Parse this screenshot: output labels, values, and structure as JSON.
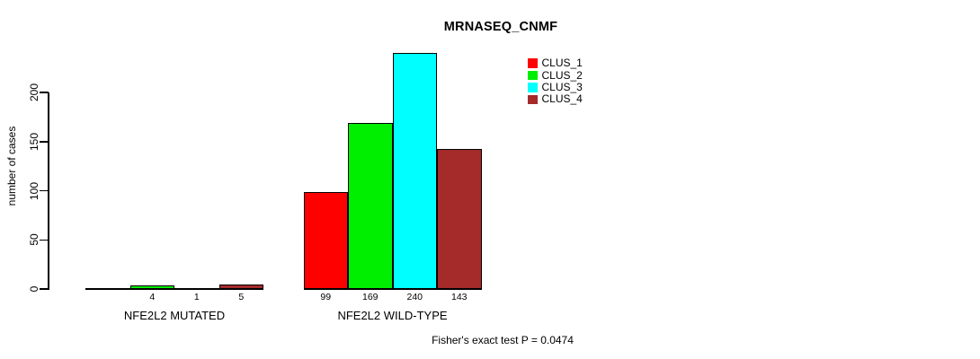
{
  "chart_data": {
    "type": "bar",
    "title": "MRNASEQ_CNMF",
    "ylabel": "number of cases",
    "xlabel": "",
    "ylim": [
      0,
      240
    ],
    "yticks": [
      "0",
      "50",
      "100",
      "150",
      "200"
    ],
    "grid": false,
    "legend_position": "top-right",
    "series": [
      {
        "name": "CLUS_1",
        "color": "#ff0000"
      },
      {
        "name": "CLUS_2",
        "color": "#00ee00"
      },
      {
        "name": "CLUS_3",
        "color": "#00ffff"
      },
      {
        "name": "CLUS_4",
        "color": "#a52a2a"
      }
    ],
    "categories": [
      "NFE2L2 MUTATED",
      "NFE2L2 WILD-TYPE"
    ],
    "groups": [
      {
        "label": "NFE2L2 MUTATED",
        "values": [
          0,
          4,
          1,
          5
        ],
        "bar_labels": [
          "",
          "4",
          "1",
          "5"
        ]
      },
      {
        "label": "NFE2L2 WILD-TYPE",
        "values": [
          99,
          169,
          240,
          143
        ],
        "bar_labels": [
          "99",
          "169",
          "240",
          "143"
        ]
      }
    ],
    "footnote": "Fisher's exact test P = 0.0474"
  }
}
